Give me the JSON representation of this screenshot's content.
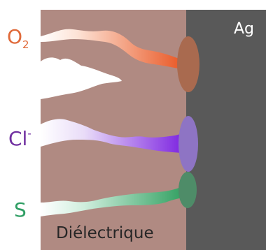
{
  "labels": {
    "metal": "Ag",
    "dielectric": "Diélectrique",
    "oxygen_main": "O",
    "oxygen_sub": "2",
    "chloride_main": "Cl",
    "chloride_sup": "-",
    "sulfur": "S"
  },
  "colors": {
    "dielectric": "#b08a82",
    "metal": "#595959",
    "oxygen": "#e8531f",
    "chloride": "#7a1fe0",
    "sulfur": "#2e9e5e",
    "oxygen_label": "#e06a3a",
    "chloride_label": "#7030a0",
    "sulfur_label": "#2f9e64",
    "corrosion_oxygen": "#a96a4f",
    "corrosion_chloride": "#8e74c4",
    "corrosion_sulfur": "#4e8c68"
  }
}
